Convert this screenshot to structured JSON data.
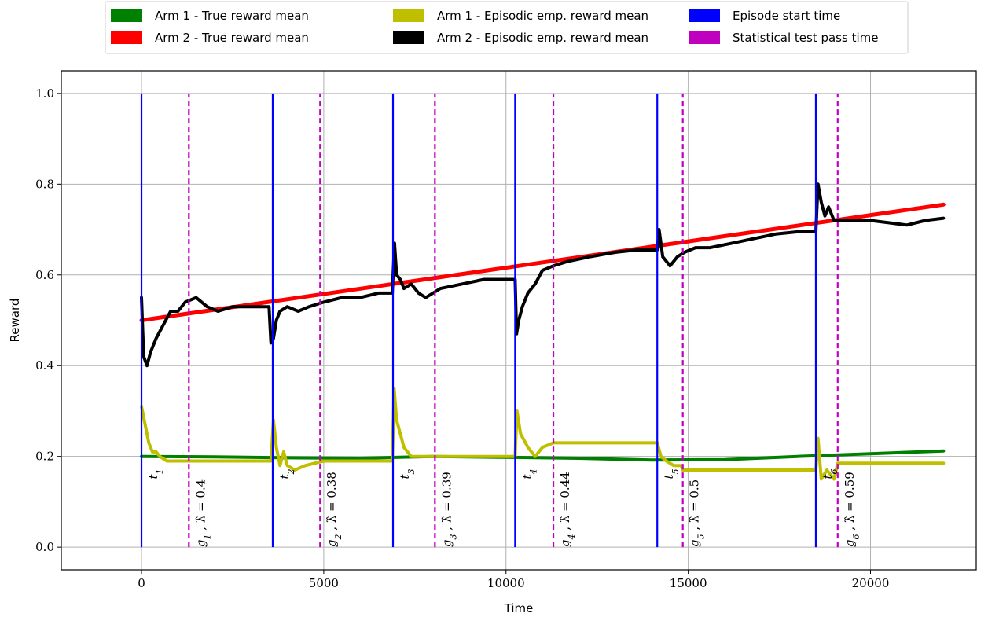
{
  "chart_data": {
    "type": "line",
    "xlabel": "Time",
    "ylabel": "Reward",
    "xlim": [
      -2200,
      22900
    ],
    "ylim": [
      -0.05,
      1.05
    ],
    "xticks": [
      0,
      5000,
      10000,
      15000,
      20000
    ],
    "xtick_labels": [
      "0",
      "5000",
      "10000",
      "15000",
      "20000"
    ],
    "yticks": [
      0.0,
      0.2,
      0.4,
      0.6,
      0.8,
      1.0
    ],
    "ytick_labels": [
      "0.0",
      "0.2",
      "0.4",
      "0.6",
      "0.8",
      "1.0"
    ],
    "grid": true,
    "legend_placement": "top-outside",
    "legend": [
      {
        "label": "Arm 1 - True reward mean",
        "color": "#008000"
      },
      {
        "label": "Arm 2 - True reward mean",
        "color": "#ff0000"
      },
      {
        "label": "Arm 1 - Episodic emp. reward mean",
        "color": "#bfbf00"
      },
      {
        "label": "Arm 2 - Episodic emp. reward mean",
        "color": "#000000"
      },
      {
        "label": "Episode start time",
        "color": "#0000ff"
      },
      {
        "label": "Statistical test pass time",
        "color": "#bf00bf"
      }
    ],
    "series": [
      {
        "name": "Arm 1 - True reward mean",
        "color": "#008000",
        "x": [
          0,
          2000,
          4000,
          6000,
          8000,
          10000,
          12000,
          14000,
          16000,
          18000,
          20000,
          22000
        ],
        "y": [
          0.2,
          0.199,
          0.197,
          0.196,
          0.2,
          0.198,
          0.196,
          0.192,
          0.193,
          0.2,
          0.206,
          0.212
        ]
      },
      {
        "name": "Arm 2 - True reward mean",
        "color": "#ff0000",
        "x": [
          0,
          22000
        ],
        "y": [
          0.5,
          0.755
        ]
      },
      {
        "name": "Arm 1 - Episodic emp. reward mean",
        "color": "#bfbf00",
        "x": [
          0,
          100,
          200,
          300,
          400,
          500,
          700,
          1000,
          1300,
          3550,
          3620,
          3700,
          3800,
          3900,
          4000,
          4200,
          4500,
          5000,
          6880,
          6930,
          7000,
          7100,
          7200,
          7400,
          7700,
          8100,
          10250,
          10300,
          10400,
          10600,
          10800,
          11000,
          11300,
          14150,
          14250,
          14400,
          14600,
          14800,
          14850,
          18500,
          18560,
          18650,
          18800,
          19000,
          19100,
          22000
        ],
        "y": [
          0.31,
          0.27,
          0.23,
          0.21,
          0.21,
          0.2,
          0.19,
          0.19,
          0.19,
          0.19,
          0.28,
          0.22,
          0.18,
          0.21,
          0.18,
          0.17,
          0.18,
          0.19,
          0.19,
          0.35,
          0.28,
          0.25,
          0.22,
          0.2,
          0.2,
          0.2,
          0.2,
          0.3,
          0.25,
          0.22,
          0.2,
          0.22,
          0.23,
          0.23,
          0.2,
          0.19,
          0.18,
          0.18,
          0.17,
          0.17,
          0.24,
          0.15,
          0.17,
          0.15,
          0.185,
          0.185
        ]
      },
      {
        "name": "Arm 2 - Episodic emp. reward mean",
        "color": "#000000",
        "x": [
          0,
          60,
          150,
          250,
          400,
          600,
          800,
          1000,
          1200,
          1500,
          1800,
          2100,
          2500,
          3000,
          3500,
          3550,
          3620,
          3700,
          3800,
          4000,
          4300,
          4600,
          5000,
          5500,
          6000,
          6500,
          6880,
          6940,
          7000,
          7100,
          7200,
          7400,
          7600,
          7800,
          8200,
          8800,
          9400,
          10250,
          10290,
          10350,
          10450,
          10600,
          10800,
          11000,
          11300,
          11700,
          12300,
          13000,
          13600,
          14150,
          14200,
          14300,
          14500,
          14700,
          14900,
          15200,
          15600,
          16200,
          16800,
          17400,
          18000,
          18500,
          18560,
          18650,
          18750,
          18850,
          19000,
          19200,
          19500,
          20000,
          20500,
          21000,
          21500,
          22000
        ],
        "y": [
          0.55,
          0.42,
          0.4,
          0.43,
          0.46,
          0.49,
          0.52,
          0.52,
          0.54,
          0.55,
          0.53,
          0.52,
          0.53,
          0.53,
          0.53,
          0.45,
          0.46,
          0.5,
          0.52,
          0.53,
          0.52,
          0.53,
          0.54,
          0.55,
          0.55,
          0.56,
          0.56,
          0.67,
          0.6,
          0.59,
          0.57,
          0.58,
          0.56,
          0.55,
          0.57,
          0.58,
          0.59,
          0.59,
          0.47,
          0.5,
          0.53,
          0.56,
          0.58,
          0.61,
          0.62,
          0.63,
          0.64,
          0.65,
          0.655,
          0.655,
          0.7,
          0.64,
          0.62,
          0.64,
          0.65,
          0.66,
          0.66,
          0.67,
          0.68,
          0.69,
          0.695,
          0.695,
          0.8,
          0.76,
          0.73,
          0.75,
          0.72,
          0.72,
          0.72,
          0.72,
          0.715,
          0.71,
          0.72,
          0.725
        ]
      }
    ],
    "episode_start_times": [
      0,
      3600,
      6900,
      10250,
      14150,
      18500
    ],
    "test_pass_times": [
      1300,
      4900,
      8050,
      11300,
      14850,
      19100
    ],
    "episode_labels": [
      "t",
      "t",
      "t",
      "t",
      "t",
      "t"
    ],
    "episode_subscripts": [
      "1",
      "2",
      "3",
      "4",
      "5",
      "6"
    ],
    "test_labels": [
      "g",
      "g",
      "g",
      "g",
      "g",
      "g"
    ],
    "test_subscripts": [
      "1",
      "2",
      "3",
      "4",
      "5",
      "6"
    ],
    "test_lambda_text": [
      ", λ̂ = 0.4",
      ", λ̂ = 0.38",
      ", λ̂ = 0.39",
      ", λ̂ = 0.44",
      ", λ̂ = 0.5",
      ", λ̂ = 0.59"
    ]
  }
}
